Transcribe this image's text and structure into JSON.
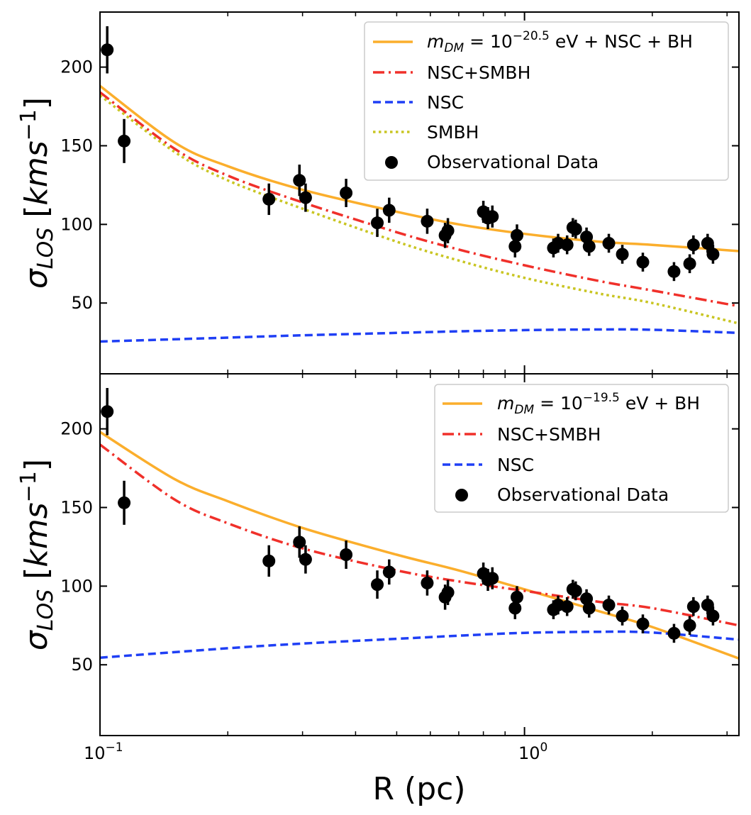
{
  "chart_data": [
    {
      "type": "line+scatter",
      "ylabel": "σLOS [kms−1]",
      "xscale": "log",
      "xlim": [
        0.1,
        3.2
      ],
      "ylim": [
        5,
        235
      ],
      "yticks": [
        50,
        100,
        150,
        200
      ],
      "legend_position": "top-right",
      "series": [
        {
          "name": "mDM=10−20.5 eV + NSC + BH",
          "style": "solid",
          "color": "#fbae2c",
          "x": [
            0.1,
            0.15,
            0.2,
            0.3,
            0.5,
            0.7,
            1.0,
            1.5,
            2.0,
            3.2
          ],
          "y": [
            188,
            152,
            137,
            122,
            108,
            100,
            94,
            89,
            87,
            83
          ]
        },
        {
          "name": "NSC+SMBH",
          "style": "dashdot",
          "color": "#f0302a",
          "x": [
            0.1,
            0.15,
            0.2,
            0.3,
            0.5,
            0.7,
            1.0,
            1.5,
            2.0,
            3.2
          ],
          "y": [
            184,
            148,
            131,
            114,
            95,
            84,
            74,
            64,
            58,
            48
          ]
        },
        {
          "name": "NSC",
          "style": "dashed",
          "color": "#1f3ff5",
          "x": [
            0.1,
            0.2,
            0.3,
            0.5,
            0.7,
            1.0,
            1.5,
            2.0,
            3.2
          ],
          "y": [
            25.5,
            28,
            29.5,
            31,
            32,
            32.8,
            33.2,
            33,
            31
          ]
        },
        {
          "name": "SMBH",
          "style": "dotted",
          "color": "#c9c522",
          "x": [
            0.1,
            0.15,
            0.2,
            0.3,
            0.5,
            0.7,
            1.0,
            1.5,
            2.0,
            3.2
          ],
          "y": [
            182,
            146,
            128,
            110,
            89,
            77,
            66,
            56,
            50,
            37
          ]
        }
      ],
      "scatter": {
        "name": "Observational Data",
        "color": "#000000",
        "points": [
          {
            "x": 0.104,
            "y": 211,
            "err": 15
          },
          {
            "x": 0.114,
            "y": 153,
            "err": 14
          },
          {
            "x": 0.25,
            "y": 116,
            "err": 10
          },
          {
            "x": 0.295,
            "y": 128,
            "err": 10
          },
          {
            "x": 0.305,
            "y": 117,
            "err": 9
          },
          {
            "x": 0.38,
            "y": 120,
            "err": 9
          },
          {
            "x": 0.45,
            "y": 101,
            "err": 9
          },
          {
            "x": 0.48,
            "y": 109,
            "err": 8
          },
          {
            "x": 0.59,
            "y": 102,
            "err": 8
          },
          {
            "x": 0.65,
            "y": 93,
            "err": 8
          },
          {
            "x": 0.66,
            "y": 96,
            "err": 8
          },
          {
            "x": 0.8,
            "y": 108,
            "err": 7
          },
          {
            "x": 0.82,
            "y": 104,
            "err": 7
          },
          {
            "x": 0.84,
            "y": 105,
            "err": 7
          },
          {
            "x": 0.95,
            "y": 86,
            "err": 7
          },
          {
            "x": 0.96,
            "y": 93,
            "err": 7
          },
          {
            "x": 1.17,
            "y": 85,
            "err": 6
          },
          {
            "x": 1.2,
            "y": 88,
            "err": 6
          },
          {
            "x": 1.26,
            "y": 87,
            "err": 6
          },
          {
            "x": 1.3,
            "y": 98,
            "err": 6
          },
          {
            "x": 1.32,
            "y": 97,
            "err": 6
          },
          {
            "x": 1.4,
            "y": 92,
            "err": 6
          },
          {
            "x": 1.42,
            "y": 86,
            "err": 6
          },
          {
            "x": 1.58,
            "y": 88,
            "err": 6
          },
          {
            "x": 1.7,
            "y": 81,
            "err": 6
          },
          {
            "x": 1.9,
            "y": 76,
            "err": 6
          },
          {
            "x": 2.25,
            "y": 70,
            "err": 6
          },
          {
            "x": 2.45,
            "y": 75,
            "err": 6
          },
          {
            "x": 2.5,
            "y": 87,
            "err": 6
          },
          {
            "x": 2.7,
            "y": 88,
            "err": 6
          },
          {
            "x": 2.78,
            "y": 81,
            "err": 6
          }
        ]
      }
    },
    {
      "type": "line+scatter",
      "ylabel": "σLOS [kms−1]",
      "xlabel": "R (pc)",
      "xscale": "log",
      "xlim": [
        0.1,
        3.2
      ],
      "ylim": [
        5,
        235
      ],
      "yticks": [
        50,
        100,
        150,
        200
      ],
      "xticks": [
        0.1,
        1
      ],
      "legend_position": "top-right",
      "series": [
        {
          "name": "mDM=10−19.5 eV + BH",
          "style": "solid",
          "color": "#fbae2c",
          "x": [
            0.1,
            0.15,
            0.2,
            0.3,
            0.5,
            0.7,
            1.0,
            1.5,
            2.0,
            3.2
          ],
          "y": [
            198,
            168,
            154,
            137,
            120,
            110,
            98,
            84,
            74,
            54
          ]
        },
        {
          "name": "NSC+SMBH",
          "style": "dashdot",
          "color": "#f0302a",
          "x": [
            0.1,
            0.15,
            0.2,
            0.3,
            0.5,
            0.7,
            1.0,
            1.5,
            2.0,
            3.2
          ],
          "y": [
            190,
            155,
            140,
            124,
            110,
            103,
            97,
            90,
            86,
            75
          ]
        },
        {
          "name": "NSC",
          "style": "dashed",
          "color": "#1f3ff5",
          "x": [
            0.1,
            0.2,
            0.3,
            0.5,
            0.7,
            1.0,
            1.5,
            2.0,
            3.2
          ],
          "y": [
            54.5,
            60.5,
            63.5,
            66.5,
            68.5,
            70.3,
            71,
            70.5,
            66
          ]
        }
      ],
      "scatter": {
        "name": "Observational Data",
        "color": "#000000",
        "points": [
          {
            "x": 0.104,
            "y": 211,
            "err": 15
          },
          {
            "x": 0.114,
            "y": 153,
            "err": 14
          },
          {
            "x": 0.25,
            "y": 116,
            "err": 10
          },
          {
            "x": 0.295,
            "y": 128,
            "err": 10
          },
          {
            "x": 0.305,
            "y": 117,
            "err": 9
          },
          {
            "x": 0.38,
            "y": 120,
            "err": 9
          },
          {
            "x": 0.45,
            "y": 101,
            "err": 9
          },
          {
            "x": 0.48,
            "y": 109,
            "err": 8
          },
          {
            "x": 0.59,
            "y": 102,
            "err": 8
          },
          {
            "x": 0.65,
            "y": 93,
            "err": 8
          },
          {
            "x": 0.66,
            "y": 96,
            "err": 8
          },
          {
            "x": 0.8,
            "y": 108,
            "err": 7
          },
          {
            "x": 0.82,
            "y": 104,
            "err": 7
          },
          {
            "x": 0.84,
            "y": 105,
            "err": 7
          },
          {
            "x": 0.95,
            "y": 86,
            "err": 7
          },
          {
            "x": 0.96,
            "y": 93,
            "err": 7
          },
          {
            "x": 1.17,
            "y": 85,
            "err": 6
          },
          {
            "x": 1.2,
            "y": 88,
            "err": 6
          },
          {
            "x": 1.26,
            "y": 87,
            "err": 6
          },
          {
            "x": 1.3,
            "y": 98,
            "err": 6
          },
          {
            "x": 1.32,
            "y": 97,
            "err": 6
          },
          {
            "x": 1.4,
            "y": 92,
            "err": 6
          },
          {
            "x": 1.42,
            "y": 86,
            "err": 6
          },
          {
            "x": 1.58,
            "y": 88,
            "err": 6
          },
          {
            "x": 1.7,
            "y": 81,
            "err": 6
          },
          {
            "x": 1.9,
            "y": 76,
            "err": 6
          },
          {
            "x": 2.25,
            "y": 70,
            "err": 6
          },
          {
            "x": 2.45,
            "y": 75,
            "err": 6
          },
          {
            "x": 2.5,
            "y": 87,
            "err": 6
          },
          {
            "x": 2.7,
            "y": 88,
            "err": 6
          },
          {
            "x": 2.78,
            "y": 81,
            "err": 6
          }
        ]
      }
    }
  ],
  "labels": {
    "ylabel_symbol": "σ",
    "ylabel_sub": "LOS",
    "ylabel_bracket_open": " [",
    "ylabel_unit": "kms",
    "ylabel_exp": "−1",
    "ylabel_bracket_close": "]",
    "xlabel": "R (pc)",
    "xtick_base": "10",
    "xtick_exp_1": "−1",
    "xtick_exp_2": "0"
  },
  "legend": {
    "top": {
      "m_symbol": "m",
      "m_sub": "DM",
      "eq_base": " = 10",
      "exp": "−20.5",
      "suffix": " eV + NSC + BH",
      "nsc_smbh": "NSC+SMBH",
      "nsc": "NSC",
      "smbh": "SMBH",
      "obs": "Observational Data"
    },
    "bottom": {
      "m_symbol": "m",
      "m_sub": "DM",
      "eq_base": " = 10",
      "exp": "−19.5",
      "suffix": " eV + BH",
      "nsc_smbh": "NSC+SMBH",
      "nsc": "NSC",
      "obs": "Observational Data"
    }
  },
  "colors": {
    "orange": "#fbae2c",
    "red": "#f0302a",
    "blue": "#1f3ff5",
    "olive": "#c9c522",
    "black": "#000000"
  }
}
